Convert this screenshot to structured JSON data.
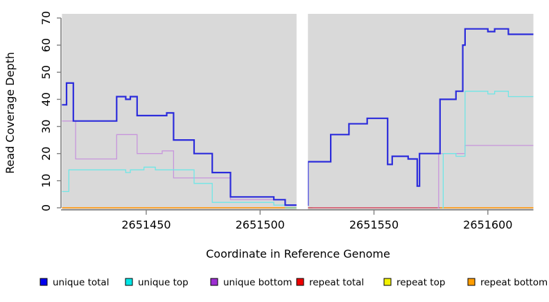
{
  "figure": {
    "x_label": "Coordinate in Reference Genome",
    "y_label": "Read Coverage Depth"
  },
  "legend": [
    {
      "label": "unique total",
      "swatch": "#0000ee"
    },
    {
      "label": "unique top",
      "swatch": "#00e6e6"
    },
    {
      "label": "unique bottom",
      "swatch": "#9d2fd1"
    },
    {
      "label": "repeat total",
      "swatch": "#ee0000"
    },
    {
      "label": "repeat top",
      "swatch": "#f2f200"
    },
    {
      "label": "repeat bottom",
      "swatch": "#ff9d00"
    }
  ],
  "chart_data": {
    "type": "line",
    "subtype": "step",
    "title": "",
    "xlabel": "Coordinate in Reference Genome",
    "ylabel": "Read Coverage Depth",
    "xlim": [
      2651413,
      2651620
    ],
    "ylim": [
      0,
      70
    ],
    "x_ticks": [
      2651450,
      2651500,
      2651550,
      2651600
    ],
    "y_ticks": [
      0,
      10,
      20,
      30,
      40,
      50,
      60,
      70
    ],
    "gap_x": [
      2651516,
      2651521
    ],
    "panel_bg": "#d9d9d9",
    "grid": false,
    "legend_position": "bottom",
    "series": [
      {
        "name": "repeat bottom",
        "color": "#ff9c1a",
        "width": 1.8,
        "segments": [
          {
            "steps": [
              [
                2651413,
                0
              ]
            ],
            "end": 2651511
          },
          {
            "steps": [
              [
                2651579,
                0
              ]
            ],
            "end": 2651620
          }
        ]
      },
      {
        "name": "repeat top",
        "color": "#7dc87d",
        "width": 1.5,
        "segments": [
          {
            "steps": [
              [
                2651511,
                0
              ]
            ],
            "end": 2651516
          },
          {
            "steps": [
              [
                2651521,
                0
              ]
            ],
            "end": 2651523
          }
        ]
      },
      {
        "name": "repeat total",
        "color": "#d6495f",
        "width": 1.5,
        "segments": [
          {
            "steps": [
              [
                2651521,
                0
              ]
            ],
            "end": 2651579
          }
        ]
      },
      {
        "name": "unique bottom",
        "color": "#c795dc",
        "width": 1.3,
        "segments": [
          {
            "steps": [
              [
                2651413,
                32
              ],
              [
                2651419,
                18
              ],
              [
                2651437,
                27
              ],
              [
                2651446,
                20
              ],
              [
                2651457,
                21
              ],
              [
                2651462,
                11
              ],
              [
                2651487,
                3
              ]
            ],
            "end": 2651511
          },
          {
            "steps": [
              [
                2651578,
                0
              ],
              [
                2651578.4,
                20
              ],
              [
                2651590,
                23
              ]
            ],
            "end": 2651620
          }
        ]
      },
      {
        "name": "unique top",
        "color": "#6fe6e6",
        "width": 1.3,
        "segments": [
          {
            "steps": [
              [
                2651413,
                6
              ],
              [
                2651416,
                14
              ],
              [
                2651441,
                13
              ],
              [
                2651443,
                14
              ],
              [
                2651449,
                15
              ],
              [
                2651454,
                14
              ],
              [
                2651471,
                9
              ],
              [
                2651479,
                2
              ],
              [
                2651506,
                1
              ]
            ],
            "end": 2651511
          },
          {
            "steps": [
              [
                2651580,
                0
              ],
              [
                2651580.4,
                20
              ],
              [
                2651586,
                19
              ],
              [
                2651590,
                43
              ],
              [
                2651600,
                42
              ],
              [
                2651603,
                43
              ],
              [
                2651609,
                41
              ]
            ],
            "end": 2651620
          }
        ]
      },
      {
        "name": "unique total",
        "color": "#2b2bdb",
        "width": 2.2,
        "segments": [
          {
            "steps": [
              [
                2651413,
                38
              ],
              [
                2651415,
                46
              ],
              [
                2651418,
                32
              ],
              [
                2651437,
                41
              ],
              [
                2651441,
                40
              ],
              [
                2651443,
                41
              ],
              [
                2651446,
                34
              ],
              [
                2651459,
                35
              ],
              [
                2651462,
                25
              ],
              [
                2651471,
                20
              ],
              [
                2651479,
                13
              ],
              [
                2651487,
                4
              ],
              [
                2651506,
                3
              ],
              [
                2651511,
                1
              ],
              [
                2651521,
                17
              ],
              [
                2651531,
                27
              ],
              [
                2651539,
                31
              ],
              [
                2651547,
                33
              ],
              [
                2651556,
                16
              ],
              [
                2651558,
                19
              ],
              [
                2651565,
                18
              ],
              [
                2651569,
                8
              ],
              [
                2651570,
                20
              ],
              [
                2651579,
                40
              ],
              [
                2651586,
                43
              ],
              [
                2651589,
                60
              ],
              [
                2651590,
                66
              ],
              [
                2651600,
                65
              ],
              [
                2651603,
                66
              ],
              [
                2651609,
                64
              ]
            ],
            "end": 2651620
          }
        ]
      }
    ]
  }
}
